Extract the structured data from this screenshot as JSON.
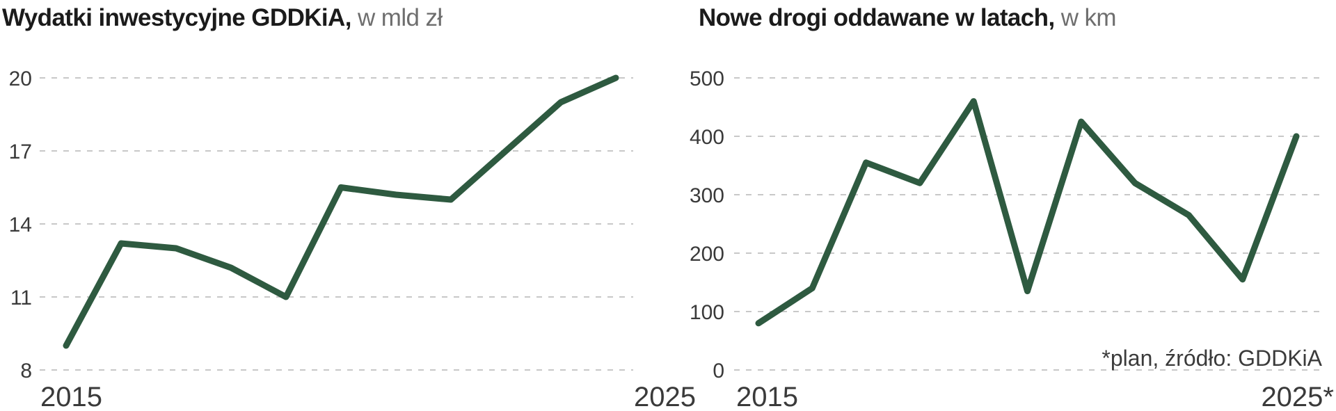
{
  "page": {
    "background_color": "#ffffff"
  },
  "style": {
    "line_color": "#2e5a40",
    "grid_color": "#c8c8c8",
    "tick_color": "#3a3a3a",
    "title_color": "#1b1b1b",
    "unit_color": "#6e6e6e",
    "footnote_color": "#3b3b3b"
  },
  "chart_data": [
    {
      "type": "line",
      "title": "Wydatki inwestycyjne GDDKiA,",
      "unit": "w mld zł",
      "x": [
        2015,
        2016,
        2017,
        2018,
        2019,
        2020,
        2021,
        2022,
        2023,
        2024,
        2025
      ],
      "values": [
        9,
        13.2,
        13,
        12.2,
        11,
        15.5,
        15.2,
        15,
        17,
        19,
        20
      ],
      "ylim": [
        8,
        20
      ],
      "yticks": [
        8,
        11,
        14,
        17,
        20
      ],
      "xtick_labels": [
        "2015",
        "2025"
      ],
      "line_color": "#2e5a40",
      "grid": "horizontal-dashed",
      "legend": "none"
    },
    {
      "type": "line",
      "title": "Nowe drogi oddawane w latach,",
      "unit": "w km",
      "x": [
        2015,
        2016,
        2017,
        2018,
        2019,
        2020,
        2021,
        2022,
        2023,
        2024,
        2025
      ],
      "values": [
        80,
        140,
        355,
        320,
        460,
        135,
        425,
        320,
        265,
        155,
        400
      ],
      "ylim": [
        0,
        500
      ],
      "yticks": [
        0,
        100,
        200,
        300,
        400,
        500
      ],
      "xtick_labels": [
        "2015",
        "2025*"
      ],
      "footnote": "*plan, źródło: GDDKiA",
      "line_color": "#2e5a40",
      "grid": "horizontal-dashed",
      "legend": "none"
    }
  ]
}
